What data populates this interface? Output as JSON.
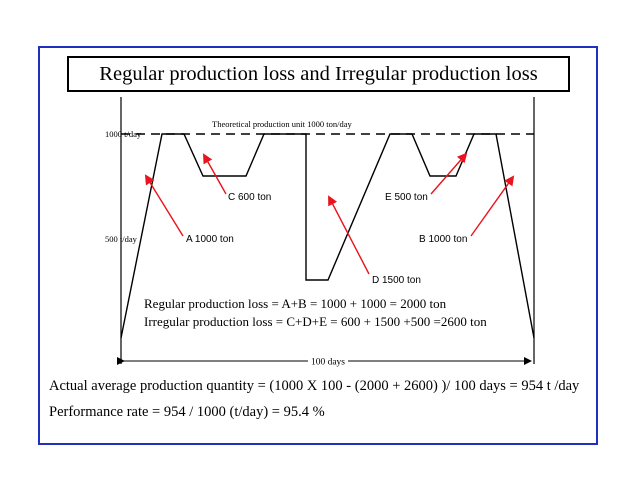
{
  "title": "Regular production loss and Irregular production loss",
  "theoretical_line_label": "Theoretical production unit 1000 ton/day",
  "y_label_top": "1000 t/day",
  "y_label_mid": "500 t/day",
  "span_label": "100 days",
  "annotations": {
    "a": "A 1000 ton",
    "b": "B 1000 ton",
    "c": "C 600 ton",
    "d": "D 1500 ton",
    "e": "E 500 ton"
  },
  "equations": {
    "regular": "Regular production loss = A+B = 1000 + 1000 = 2000 ton",
    "irregular": "Irregular production loss = C+D+E = 600 + 1500 +500 =2600 ton"
  },
  "results": {
    "average": "Actual average production quantity = (1000 X 100 - (2000 + 2600) )/ 100 days = 954 t /day",
    "performance": "Performance rate = 954 / 1000 (t/day) = 95.4 %"
  },
  "colors": {
    "frame": "#1f2fbf",
    "arrow": "#e8141e",
    "line": "#000000"
  }
}
